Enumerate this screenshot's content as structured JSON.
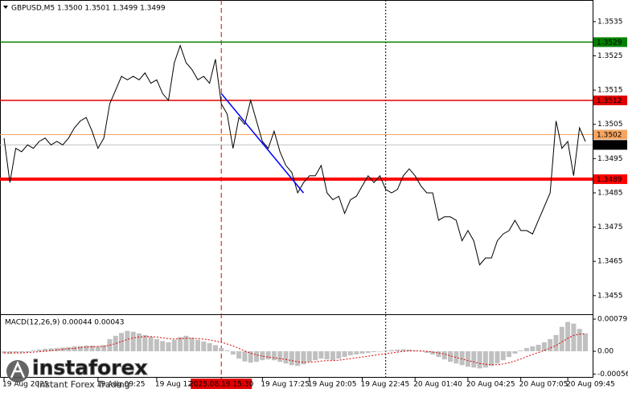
{
  "chart_data": [
    {
      "type": "line",
      "title": "GBPUSD,M5 1.3500 1.3501 1.3499 1.3499",
      "color": "#000000",
      "categories": [
        "19 Aug 2025",
        null,
        null,
        null,
        null,
        null,
        null,
        null,
        null,
        null,
        null,
        null,
        null,
        null,
        null,
        null,
        "19 Aug 09:25",
        null,
        null,
        null,
        null,
        null,
        null,
        null,
        null,
        null,
        "19 Aug 12:05",
        null,
        null,
        null,
        null,
        null,
        null,
        null,
        null,
        null,
        null,
        "2025.08.19 15:30",
        null,
        null,
        null,
        null,
        null,
        null,
        "19 Aug 17:25",
        null,
        null,
        null,
        null,
        null,
        null,
        null,
        "19 Aug 20:05",
        null,
        null,
        null,
        null,
        null,
        null,
        null,
        null,
        "19 Aug 22:45",
        null,
        null,
        null,
        null,
        null,
        null,
        null,
        null,
        "20 Aug 01:40",
        null,
        null,
        null,
        null,
        null,
        null,
        null,
        null,
        "20 Aug 04:25",
        null,
        null,
        null,
        null,
        null,
        null,
        null,
        null,
        "20 Aug 07:05",
        null,
        null,
        null,
        null,
        null,
        null,
        null,
        "20 Aug 09:45",
        null,
        null,
        null
      ],
      "values": [
        1.3501,
        1.3488,
        1.3498,
        1.3497,
        1.3499,
        1.3498,
        1.35,
        1.3501,
        1.3499,
        1.35,
        1.3499,
        1.3501,
        1.3504,
        1.3506,
        1.3507,
        1.3503,
        1.3498,
        1.3501,
        1.3511,
        1.3515,
        1.3519,
        1.3518,
        1.3519,
        1.3518,
        1.352,
        1.3517,
        1.3518,
        1.3514,
        1.3512,
        1.3523,
        1.3528,
        1.3523,
        1.3521,
        1.3518,
        1.3519,
        1.3517,
        1.3524,
        1.3511,
        1.3508,
        1.3498,
        1.3507,
        1.3505,
        1.3512,
        1.3506,
        1.35,
        1.3498,
        1.3503,
        1.3497,
        1.3493,
        1.3491,
        1.3485,
        1.3488,
        1.349,
        1.349,
        1.3493,
        1.3485,
        1.3483,
        1.3484,
        1.3479,
        1.3483,
        1.3484,
        1.3487,
        1.349,
        1.3488,
        1.349,
        1.3486,
        1.3485,
        1.3486,
        1.349,
        1.3492,
        1.349,
        1.3487,
        1.3485,
        1.3485,
        1.3477,
        1.3478,
        1.3478,
        1.3477,
        1.3471,
        1.3474,
        1.3471,
        1.3464,
        1.3466,
        1.3466,
        1.3471,
        1.3473,
        1.3474,
        1.3477,
        1.3474,
        1.3474,
        1.3473,
        1.3477,
        1.3481,
        1.3485,
        1.3506,
        1.3498,
        1.35,
        1.349,
        1.3504,
        1.35
      ],
      "ylim": [
        1.34498,
        1.35413
      ],
      "yticks": [
        1.3535,
        1.3525,
        1.3515,
        1.3505,
        1.3495,
        1.3485,
        1.3475,
        1.3465,
        1.3455
      ],
      "levels": [
        {
          "value": 1.3529,
          "color": "#008000",
          "width": 1.5,
          "text_color": "#ffffff"
        },
        {
          "value": 1.3512,
          "color": "#e00000",
          "width": 1.5,
          "text_color": "#ffffff"
        },
        {
          "value": 1.3502,
          "color": "#f4a460",
          "width": 1,
          "text_color": "#ffffff"
        },
        {
          "value": 1.3499,
          "color": "#c0c0c0",
          "width": 1,
          "box": "#000000",
          "text_color": "#ffffff"
        },
        {
          "value": 1.3489,
          "color": "#ff0000",
          "width": 4,
          "text_color": "#ffffff"
        }
      ],
      "vlines": [
        {
          "at": 37,
          "color": "#e00000",
          "dash": "6,4",
          "box": "#e00000"
        },
        {
          "at": 65,
          "color": "#000000",
          "dash": "2,2"
        }
      ],
      "trend_line": {
        "start_index": 37,
        "start": 1.3514,
        "end_index": 51,
        "end": 1.3485,
        "color": "#0000ff"
      },
      "watermark": {
        "name": "instaforex",
        "tagline": "Instant Forex Trading"
      }
    },
    {
      "type": "bar",
      "title": "MACD(12,26,9) 0.00044 0.00043",
      "color": "#c0c0c0",
      "signal_color": "#e00000",
      "values": [
        -5e-05,
        -6e-05,
        -4e-05,
        -3e-05,
        -2e-05,
        2e-05,
        4e-05,
        6e-05,
        7e-05,
        8e-05,
        9e-05,
        0.0001,
        0.00012,
        0.00013,
        0.00014,
        0.00014,
        0.00012,
        0.00015,
        0.0003,
        0.00038,
        0.00045,
        0.0005,
        0.00048,
        0.00044,
        0.0004,
        0.00036,
        0.0003,
        0.00025,
        0.00022,
        0.00028,
        0.00035,
        0.00038,
        0.00033,
        0.00028,
        0.00024,
        0.0002,
        0.00015,
        8e-05,
        2e-05,
        -8e-05,
        -0.00018,
        -0.00025,
        -0.00028,
        -0.00026,
        -0.00022,
        -0.0002,
        -0.00022,
        -0.00026,
        -0.0003,
        -0.00034,
        -0.00036,
        -0.00032,
        -0.00026,
        -0.00022,
        -0.00018,
        -0.0002,
        -0.00022,
        -0.00018,
        -0.00014,
        -0.0001,
        -8e-05,
        -6e-05,
        -4e-05,
        -2e-05,
        0,
        2e-05,
        3e-05,
        4e-05,
        5e-05,
        4e-05,
        2e-05,
        0,
        -4e-05,
        -8e-05,
        -0.00014,
        -0.0002,
        -0.00026,
        -0.0003,
        -0.00034,
        -0.00038,
        -0.0004,
        -0.00042,
        -0.0004,
        -0.00036,
        -0.0003,
        -0.00022,
        -0.00014,
        -6e-05,
        2e-05,
        8e-05,
        0.00012,
        0.00016,
        0.00022,
        0.0003,
        0.0004,
        0.0006,
        0.00072,
        0.00068,
        0.00055,
        0.00044
      ],
      "signal": [
        -4e-05,
        -4e-05,
        -4e-05,
        -4e-05,
        -3e-05,
        -2e-05,
        -1e-05,
        0,
        2e-05,
        3e-05,
        5e-05,
        6e-05,
        7e-05,
        9e-05,
        0.0001,
        0.00011,
        0.00012,
        0.00012,
        0.00015,
        0.00019,
        0.00024,
        0.00029,
        0.00033,
        0.00035,
        0.00036,
        0.00036,
        0.00035,
        0.00033,
        0.00031,
        0.0003,
        0.00031,
        0.00032,
        0.00032,
        0.00031,
        0.0003,
        0.00028,
        0.00025,
        0.00022,
        0.00018,
        0.00013,
        7e-05,
        1e-05,
        -5e-05,
        -9e-05,
        -0.00012,
        -0.00014,
        -0.00016,
        -0.00018,
        -0.0002,
        -0.00023,
        -0.00026,
        -0.00027,
        -0.00027,
        -0.00026,
        -0.00024,
        -0.00023,
        -0.00023,
        -0.00022,
        -0.0002,
        -0.00018,
        -0.00016,
        -0.00014,
        -0.00012,
        -0.0001,
        -8e-05,
        -6e-05,
        -4e-05,
        -2e-05,
        0,
        1e-05,
        1e-05,
        1e-05,
        0,
        -2e-05,
        -4e-05,
        -7e-05,
        -0.00011,
        -0.00015,
        -0.00019,
        -0.00023,
        -0.00026,
        -0.0003,
        -0.00032,
        -0.00033,
        -0.00033,
        -0.00031,
        -0.00028,
        -0.00024,
        -0.00019,
        -0.00013,
        -8e-05,
        -3e-05,
        2e-05,
        8e-05,
        0.00014,
        0.00023,
        0.00032,
        0.00039,
        0.00042,
        0.00043
      ],
      "ylim": [
        -0.00065,
        0.00089
      ],
      "yticks": [
        0.00079,
        {
          "value": 0,
          "label": "0.00"
        },
        -0.00056
      ]
    }
  ]
}
